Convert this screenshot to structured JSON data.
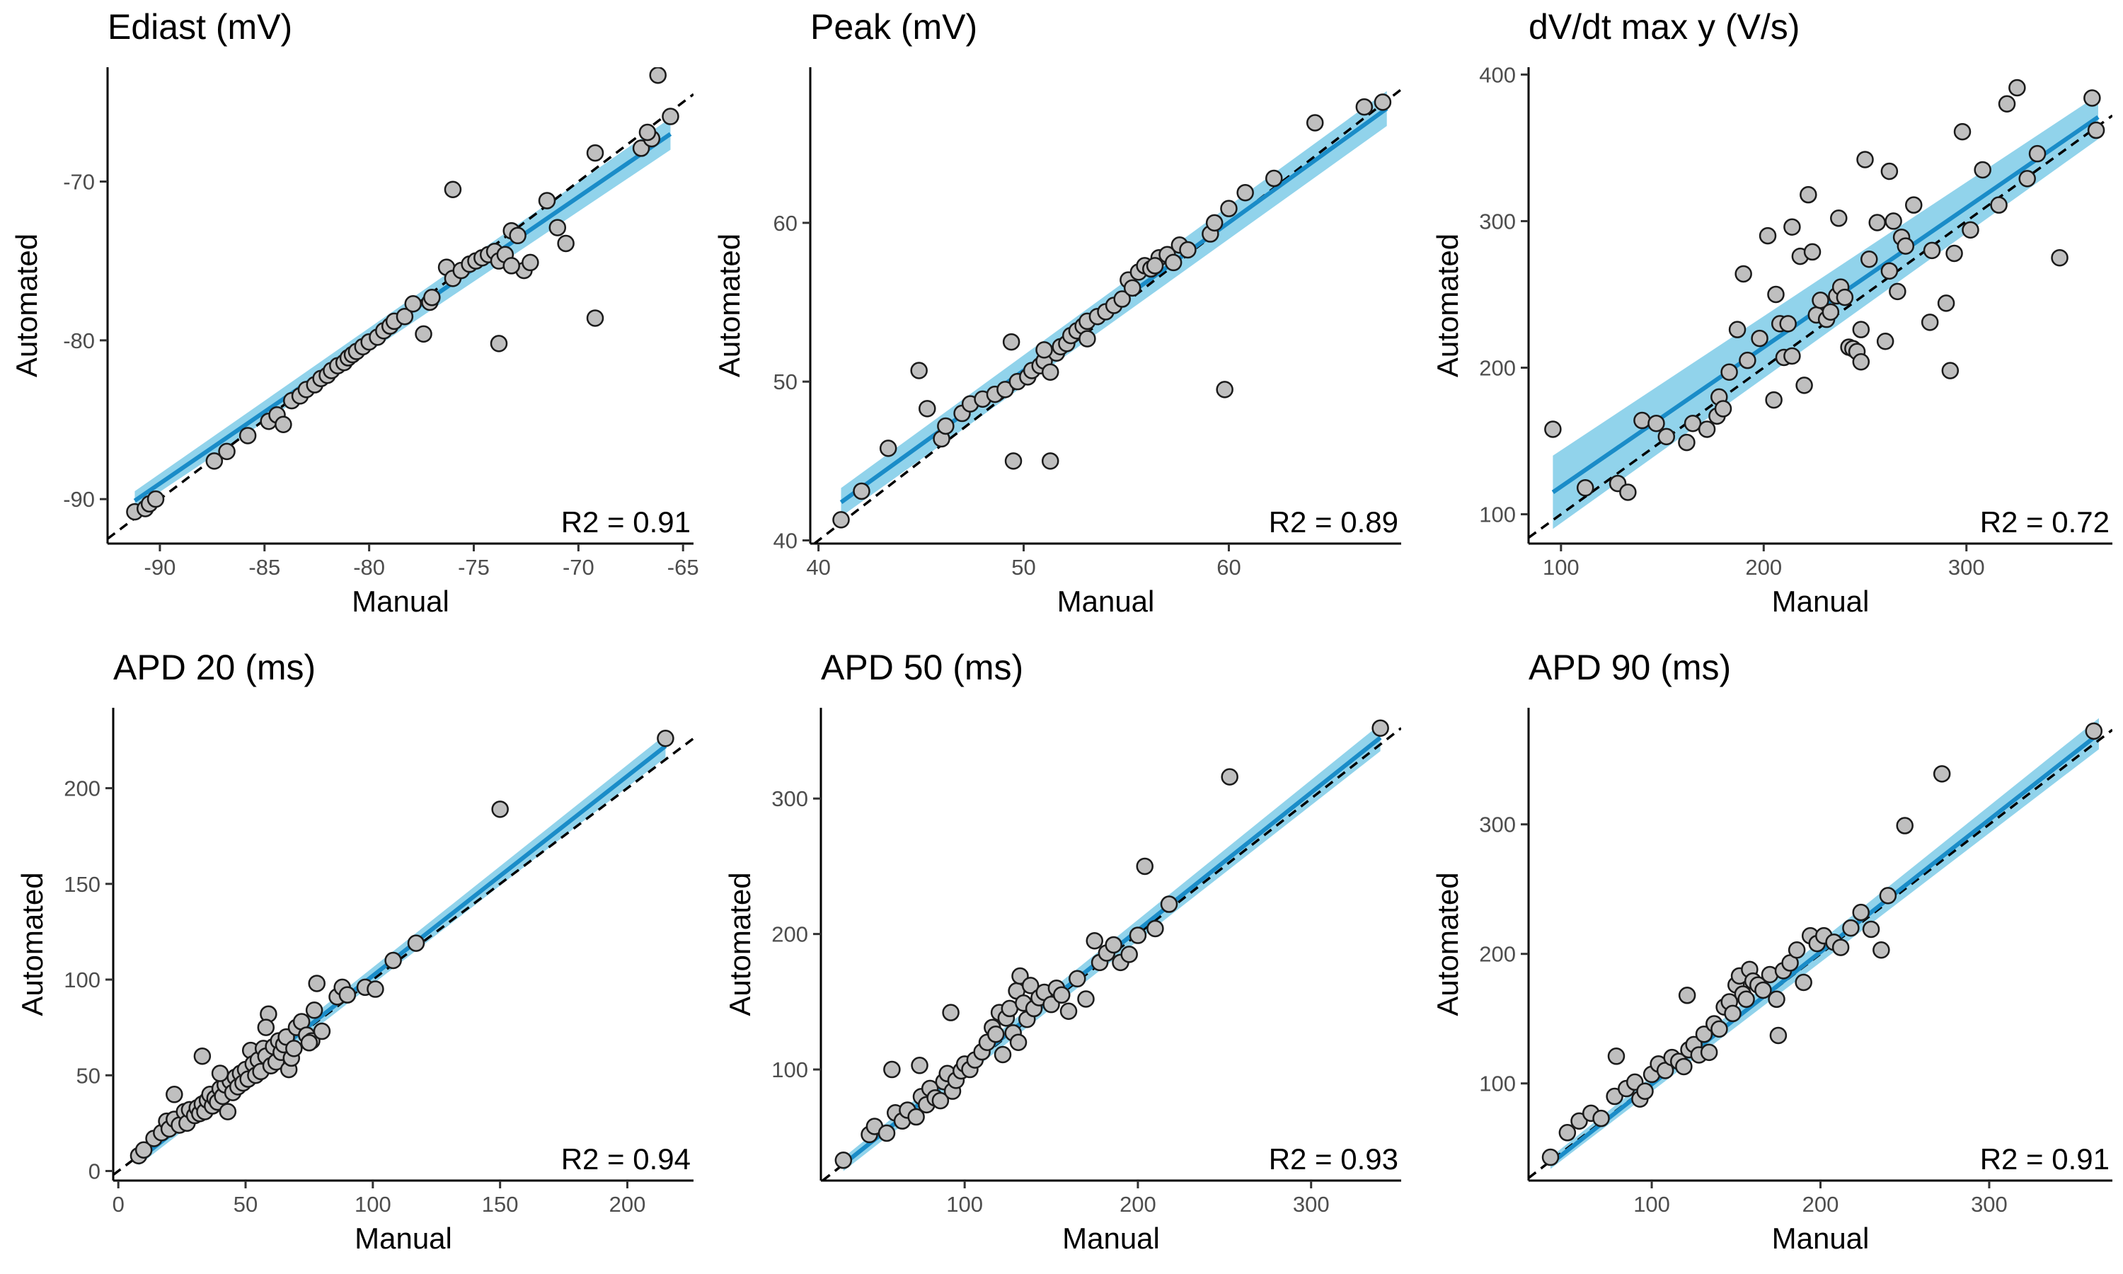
{
  "figure": {
    "x_axis_label": "Manual",
    "y_axis_label": "Automated"
  },
  "colors": {
    "fit_line": "#1a8cc8",
    "ci_band": "#7ecbe8",
    "point_fill": "#bfbfbf",
    "point_stroke": "#1a1a1a",
    "identity_line": "#000000"
  },
  "chart_data": [
    {
      "type": "scatter",
      "title": "Ediast (mV)",
      "xlabel": "Manual",
      "ylabel": "Automated",
      "xlim": [
        -92.5,
        -64.5
      ],
      "ylim": [
        -92.8,
        -62.8
      ],
      "xticks": [
        -90,
        -85,
        -80,
        -75,
        -70,
        -65
      ],
      "yticks": [
        -90,
        -80,
        -70
      ],
      "annotation": "R2 = 0.91",
      "fit": {
        "x": [
          -91.2,
          -65.6
        ],
        "y": [
          -90.1,
          -67.0
        ],
        "ci_low": [
          -90.6,
          -68.0
        ],
        "ci_high": [
          -89.5,
          -66.0
        ]
      },
      "x": [
        -91.2,
        -90.7,
        -90.5,
        -90.2,
        -87.4,
        -86.8,
        -85.8,
        -84.8,
        -84.4,
        -84.1,
        -83.7,
        -83.3,
        -83.0,
        -82.6,
        -82.3,
        -82.0,
        -81.8,
        -81.5,
        -81.2,
        -81.0,
        -80.8,
        -80.6,
        -80.3,
        -80.0,
        -79.6,
        -79.3,
        -79.0,
        -78.8,
        -78.3,
        -77.9,
        -77.4,
        -77.1,
        -77.0,
        -76.3,
        -76.0,
        -75.6,
        -75.2,
        -74.9,
        -74.6,
        -74.3,
        -74.0,
        -73.8,
        -73.5,
        -73.2,
        -72.9,
        -72.6,
        -72.3,
        -71.5,
        -71.0,
        -70.6,
        -69.2,
        -67.0,
        -66.5,
        -66.2,
        -65.6,
        -66.7,
        -76.0,
        -73.8,
        -69.2,
        -73.2
      ],
      "y": [
        -90.8,
        -90.6,
        -90.3,
        -90.0,
        -87.6,
        -87.0,
        -86.0,
        -85.1,
        -84.7,
        -85.3,
        -83.8,
        -83.5,
        -83.1,
        -82.8,
        -82.4,
        -82.2,
        -81.9,
        -81.6,
        -81.4,
        -81.1,
        -80.9,
        -80.7,
        -80.4,
        -80.1,
        -79.8,
        -79.4,
        -79.1,
        -78.8,
        -78.5,
        -77.7,
        -79.6,
        -77.6,
        -77.3,
        -75.4,
        -76.1,
        -75.6,
        -75.2,
        -75.0,
        -74.8,
        -74.6,
        -74.4,
        -75.0,
        -74.6,
        -73.1,
        -73.4,
        -75.6,
        -75.1,
        -71.2,
        -72.9,
        -73.9,
        -68.2,
        -67.9,
        -67.3,
        -63.3,
        -65.9,
        -66.9,
        -70.5,
        -80.2,
        -78.6,
        -75.3
      ]
    },
    {
      "type": "scatter",
      "title": "Peak (mV)",
      "xlabel": "Manual",
      "ylabel": "Automated",
      "xlim": [
        39.6,
        68.4
      ],
      "ylim": [
        39.8,
        69.8
      ],
      "xticks": [
        40,
        50,
        60
      ],
      "yticks": [
        40,
        50,
        60
      ],
      "annotation": "R2 = 0.89",
      "fit": {
        "x": [
          41.1,
          67.7
        ],
        "y": [
          42.4,
          67.2
        ],
        "ci_low": [
          41.5,
          66.1
        ],
        "ci_high": [
          43.3,
          68.3
        ]
      },
      "x": [
        41.1,
        42.1,
        43.4,
        44.9,
        45.3,
        46.0,
        46.2,
        47.0,
        47.4,
        48.0,
        48.6,
        49.1,
        49.4,
        49.7,
        50.2,
        50.4,
        50.8,
        51.0,
        51.3,
        51.6,
        51.8,
        52.1,
        52.3,
        52.6,
        52.9,
        53.1,
        53.6,
        54.0,
        54.4,
        54.8,
        55.1,
        55.3,
        55.6,
        55.9,
        56.2,
        56.6,
        57.0,
        57.3,
        57.6,
        58.0,
        59.1,
        59.3,
        60.0,
        60.8,
        62.2,
        64.2,
        66.6,
        67.5,
        49.5,
        51.3,
        59.8,
        51.0,
        53.1,
        56.4
      ],
      "y": [
        41.3,
        43.1,
        45.8,
        50.7,
        48.3,
        46.4,
        47.2,
        48.0,
        48.6,
        48.9,
        49.2,
        49.5,
        52.5,
        50.0,
        50.3,
        50.7,
        51.0,
        51.3,
        50.6,
        51.8,
        52.2,
        52.4,
        52.9,
        53.2,
        53.5,
        53.8,
        54.1,
        54.4,
        54.8,
        55.2,
        56.4,
        55.9,
        56.9,
        57.3,
        57.1,
        57.8,
        58.0,
        57.5,
        58.6,
        58.3,
        59.3,
        60.0,
        60.9,
        61.9,
        62.8,
        66.3,
        67.3,
        67.6,
        45.0,
        45.0,
        49.5,
        52.0,
        52.7,
        57.3
      ]
    },
    {
      "type": "scatter",
      "title": "dV/dt max y (V/s)",
      "xlabel": "Manual",
      "ylabel": "Automated",
      "xlim": [
        84,
        372
      ],
      "ylim": [
        80,
        405
      ],
      "xticks": [
        100,
        200,
        300
      ],
      "yticks": [
        100,
        200,
        300,
        400
      ],
      "annotation": "R2 = 0.72",
      "fit": {
        "x": [
          96,
          365
        ],
        "y": [
          115,
          371
        ],
        "ci_low": [
          90,
          356
        ],
        "ci_high": [
          140,
          386
        ]
      },
      "x": [
        96,
        112,
        128,
        133,
        140,
        147,
        152,
        162,
        165,
        172,
        177,
        178,
        180,
        183,
        187,
        190,
        192,
        198,
        202,
        205,
        206,
        208,
        210,
        212,
        214,
        218,
        220,
        222,
        224,
        226,
        228,
        231,
        233,
        236,
        238,
        240,
        242,
        244,
        246,
        248,
        252,
        256,
        260,
        262,
        264,
        266,
        268,
        270,
        274,
        282,
        290,
        292,
        294,
        298,
        302,
        308,
        316,
        320,
        325,
        330,
        335,
        346,
        362,
        364,
        237,
        248,
        262,
        250,
        283,
        214
      ],
      "y": [
        158,
        118,
        121,
        115,
        164,
        162,
        153,
        149,
        162,
        158,
        167,
        180,
        172,
        197,
        226,
        264,
        205,
        220,
        290,
        178,
        250,
        230,
        207,
        230,
        208,
        276,
        188,
        318,
        279,
        236,
        246,
        233,
        238,
        249,
        255,
        248,
        214,
        213,
        211,
        226,
        274,
        299,
        218,
        266,
        300,
        252,
        289,
        283,
        311,
        231,
        244,
        198,
        278,
        361,
        294,
        335,
        311,
        380,
        391,
        329,
        346,
        275,
        384,
        362,
        302,
        204,
        334,
        342,
        280,
        296
      ]
    },
    {
      "type": "scatter",
      "title": "APD 20 (ms)",
      "xlabel": "Manual",
      "ylabel": "Automated",
      "xlim": [
        -2,
        226
      ],
      "ylim": [
        -5,
        242
      ],
      "xticks": [
        0,
        50,
        100,
        150,
        200
      ],
      "yticks": [
        0,
        50,
        100,
        150,
        200
      ],
      "annotation": "R2 = 0.94",
      "fit": {
        "x": [
          8,
          215
        ],
        "y": [
          6,
          222
        ],
        "ci_low": [
          3,
          216
        ],
        "ci_high": [
          9,
          228
        ]
      },
      "x": [
        8,
        10,
        14,
        17,
        19,
        20,
        22,
        24,
        26,
        27,
        28,
        30,
        31,
        32,
        33,
        34,
        35,
        36,
        37,
        38,
        39,
        40,
        41,
        42,
        43,
        44,
        45,
        46,
        47,
        48,
        49,
        50,
        51,
        52,
        53,
        54,
        55,
        56,
        57,
        58,
        59,
        60,
        61,
        62,
        63,
        64,
        65,
        66,
        67,
        68,
        69,
        70,
        72,
        74,
        76,
        78,
        80,
        86,
        88,
        90,
        97,
        101,
        108,
        117,
        150,
        215,
        22,
        33,
        40,
        58,
        77,
        75
      ],
      "y": [
        8,
        11,
        17,
        20,
        26,
        22,
        27,
        24,
        31,
        25,
        32,
        29,
        33,
        30,
        35,
        31,
        37,
        40,
        34,
        38,
        36,
        43,
        39,
        45,
        31,
        47,
        41,
        49,
        44,
        51,
        46,
        53,
        48,
        63,
        56,
        50,
        58,
        52,
        64,
        60,
        82,
        55,
        65,
        57,
        68,
        62,
        66,
        70,
        53,
        59,
        64,
        75,
        78,
        71,
        68,
        98,
        73,
        91,
        96,
        92,
        96,
        95,
        110,
        119,
        189,
        226,
        40,
        60,
        51,
        75,
        84,
        67
      ]
    },
    {
      "type": "scatter",
      "title": "APD 50 (ms)",
      "xlabel": "Manual",
      "ylabel": "Automated",
      "xlim": [
        17,
        352
      ],
      "ylim": [
        18,
        367
      ],
      "xticks": [
        100,
        200,
        300
      ],
      "yticks": [
        100,
        200,
        300
      ],
      "annotation": "R2 = 0.93",
      "fit": {
        "x": [
          30,
          340
        ],
        "y": [
          30,
          345
        ],
        "ci_low": [
          25,
          335
        ],
        "ci_high": [
          35,
          355
        ]
      },
      "x": [
        30,
        45,
        48,
        55,
        60,
        64,
        67,
        72,
        75,
        78,
        80,
        83,
        86,
        88,
        90,
        93,
        95,
        98,
        100,
        103,
        106,
        110,
        113,
        116,
        118,
        120,
        122,
        124,
        126,
        128,
        130,
        132,
        134,
        136,
        138,
        140,
        143,
        146,
        150,
        153,
        156,
        160,
        165,
        170,
        175,
        178,
        182,
        186,
        190,
        195,
        200,
        210,
        218,
        253,
        340,
        58,
        74,
        92,
        131,
        204
      ],
      "y": [
        33,
        52,
        58,
        53,
        68,
        62,
        70,
        65,
        80,
        74,
        86,
        79,
        77,
        91,
        97,
        84,
        92,
        99,
        104,
        100,
        107,
        113,
        120,
        131,
        126,
        142,
        111,
        138,
        145,
        127,
        158,
        169,
        149,
        137,
        162,
        145,
        153,
        157,
        148,
        160,
        155,
        143,
        167,
        152,
        195,
        179,
        186,
        192,
        179,
        185,
        199,
        204,
        222,
        316,
        352,
        100,
        103,
        142,
        120,
        250
      ]
    },
    {
      "type": "scatter",
      "title": "APD 90 (ms)",
      "xlabel": "Manual",
      "ylabel": "Automated",
      "xlim": [
        27,
        373
      ],
      "ylim": [
        25,
        390
      ],
      "xticks": [
        100,
        200,
        300
      ],
      "yticks": [
        100,
        200,
        300
      ],
      "annotation": "R2 = 0.91",
      "fit": {
        "x": [
          40,
          365
        ],
        "y": [
          38,
          370
        ],
        "ci_low": [
          34,
          358
        ],
        "ci_high": [
          43,
          382
        ]
      },
      "x": [
        40,
        50,
        57,
        64,
        70,
        78,
        85,
        90,
        93,
        96,
        100,
        104,
        108,
        112,
        116,
        119,
        122,
        125,
        128,
        131,
        134,
        137,
        140,
        143,
        146,
        148,
        150,
        152,
        154,
        156,
        158,
        160,
        163,
        166,
        170,
        174,
        178,
        182,
        186,
        190,
        194,
        198,
        202,
        208,
        212,
        218,
        224,
        230,
        240,
        250,
        272,
        362,
        79,
        121,
        175,
        236
      ],
      "y": [
        43,
        62,
        71,
        77,
        73,
        90,
        96,
        101,
        88,
        94,
        107,
        115,
        110,
        120,
        117,
        113,
        126,
        130,
        122,
        138,
        124,
        146,
        142,
        159,
        163,
        154,
        176,
        183,
        169,
        165,
        188,
        179,
        176,
        172,
        184,
        165,
        187,
        193,
        203,
        178,
        214,
        208,
        214,
        209,
        205,
        220,
        232,
        219,
        245,
        299,
        339,
        372,
        121,
        168,
        137,
        203
      ]
    }
  ]
}
